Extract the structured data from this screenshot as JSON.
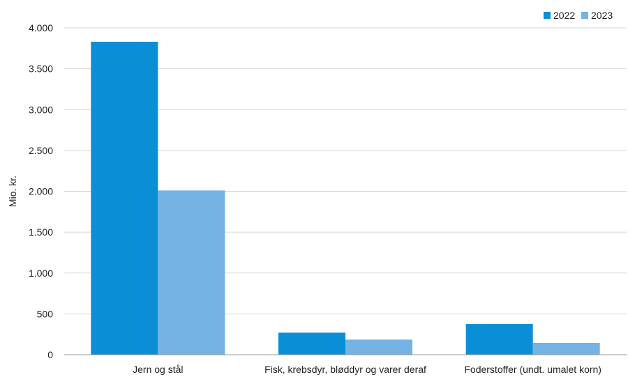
{
  "chart_data": {
    "type": "bar",
    "title": "",
    "xlabel": "",
    "ylabel": "Mio. kr.",
    "categories": [
      "Jern og stål",
      "Fisk, krebsdyr, bløddyr og varer deraf",
      "Foderstoffer (undt. umalet korn)"
    ],
    "series": [
      {
        "name": "2022",
        "values": [
          3830,
          270,
          375
        ],
        "color": "#0a8fd6"
      },
      {
        "name": "2023",
        "values": [
          2010,
          185,
          145
        ],
        "color": "#74b3e4"
      }
    ],
    "ylim": [
      0,
      4000
    ],
    "yticks": [
      0,
      500,
      1000,
      1500,
      2000,
      2500,
      3000,
      3500,
      4000
    ],
    "ytick_labels": [
      "0",
      "500",
      "1.000",
      "1.500",
      "2.000",
      "2.500",
      "3.000",
      "3.500",
      "4.000"
    ],
    "grid": true,
    "legend_position": "top-right"
  }
}
